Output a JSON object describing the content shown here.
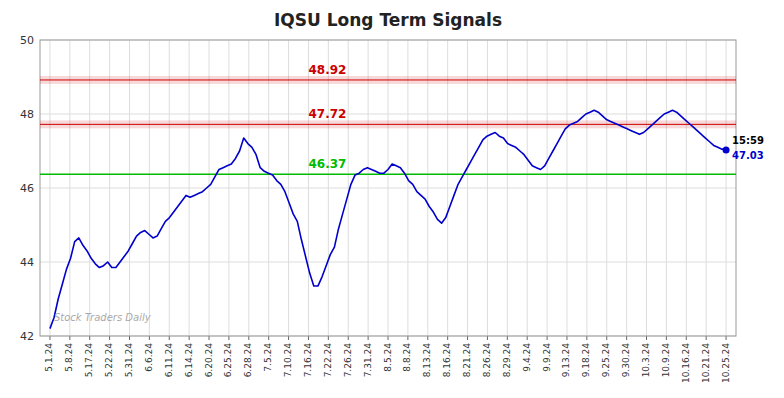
{
  "chart_data": {
    "type": "line",
    "title": "IQSU Long Term Signals",
    "watermark": "Stock Traders Daily",
    "color": "#0000cc",
    "grid": true,
    "ylim": [
      42,
      50
    ],
    "yticks": [
      42,
      44,
      46,
      48,
      50
    ],
    "xlim": [
      -0.5,
      34.5
    ],
    "xticks": [
      {
        "value": 0,
        "label": "5.1.24"
      },
      {
        "value": 1,
        "label": "5.8.24"
      },
      {
        "value": 2,
        "label": "5.17.24"
      },
      {
        "value": 3,
        "label": "5.22.24"
      },
      {
        "value": 4,
        "label": "5.31.24"
      },
      {
        "value": 5,
        "label": "6.6.24"
      },
      {
        "value": 6,
        "label": "6.11.24"
      },
      {
        "value": 7,
        "label": "6.14.24"
      },
      {
        "value": 8,
        "label": "6.20.24"
      },
      {
        "value": 9,
        "label": "6.25.24"
      },
      {
        "value": 10,
        "label": "6.28.24"
      },
      {
        "value": 11,
        "label": "7.5.24"
      },
      {
        "value": 12,
        "label": "7.10.24"
      },
      {
        "value": 13,
        "label": "7.16.24"
      },
      {
        "value": 14,
        "label": "7.22.24"
      },
      {
        "value": 15,
        "label": "7.26.24"
      },
      {
        "value": 16,
        "label": "7.31.24"
      },
      {
        "value": 17,
        "label": "8.5.24"
      },
      {
        "value": 18,
        "label": "8.8.24"
      },
      {
        "value": 19,
        "label": "8.13.24"
      },
      {
        "value": 20,
        "label": "8.16.24"
      },
      {
        "value": 21,
        "label": "8.21.24"
      },
      {
        "value": 22,
        "label": "8.26.24"
      },
      {
        "value": 23,
        "label": "8.29.24"
      },
      {
        "value": 24,
        "label": "9.4.24"
      },
      {
        "value": 25,
        "label": "9.9.24"
      },
      {
        "value": 26,
        "label": "9.13.24"
      },
      {
        "value": 27,
        "label": "9.18.24"
      },
      {
        "value": 28,
        "label": "9.25.24"
      },
      {
        "value": 29,
        "label": "9.30.24"
      },
      {
        "value": 30,
        "label": "10.3.24"
      },
      {
        "value": 31,
        "label": "10.9.24"
      },
      {
        "value": 32,
        "label": "10.16.24"
      },
      {
        "value": 33,
        "label": "10.21.24"
      },
      {
        "value": 34,
        "label": "10.25.24"
      }
    ],
    "hlines": [
      {
        "value": 48.92,
        "label": "48.92",
        "color": "#cc0000"
      },
      {
        "value": 47.72,
        "label": "47.72",
        "color": "#cc0000"
      },
      {
        "value": 46.37,
        "label": "46.37",
        "color": "#00bb00"
      }
    ],
    "annotations": [
      "15:59",
      "47.03"
    ],
    "values": [
      42.2,
      42.5,
      43.0,
      43.4,
      43.8,
      44.1,
      44.55,
      44.65,
      44.45,
      44.3,
      44.1,
      43.95,
      43.85,
      43.9,
      44.0,
      43.85,
      43.85,
      44.0,
      44.15,
      44.3,
      44.5,
      44.7,
      44.8,
      44.85,
      44.75,
      44.65,
      44.7,
      44.9,
      45.1,
      45.2,
      45.35,
      45.5,
      45.65,
      45.8,
      45.75,
      45.8,
      45.85,
      45.9,
      46.0,
      46.1,
      46.3,
      46.5,
      46.55,
      46.6,
      46.65,
      46.8,
      47.0,
      47.35,
      47.2,
      47.1,
      46.9,
      46.55,
      46.45,
      46.4,
      46.35,
      46.2,
      46.1,
      45.9,
      45.6,
      45.3,
      45.1,
      44.6,
      44.15,
      43.7,
      43.35,
      43.35,
      43.6,
      43.9,
      44.2,
      44.4,
      44.9,
      45.3,
      45.7,
      46.1,
      46.35,
      46.4,
      46.5,
      46.55,
      46.5,
      46.45,
      46.4,
      46.4,
      46.5,
      46.65,
      46.6,
      46.55,
      46.4,
      46.2,
      46.1,
      45.9,
      45.8,
      45.7,
      45.5,
      45.35,
      45.15,
      45.05,
      45.2,
      45.5,
      45.8,
      46.1,
      46.3,
      46.5,
      46.7,
      46.9,
      47.1,
      47.3,
      47.4,
      47.45,
      47.5,
      47.4,
      47.35,
      47.2,
      47.15,
      47.1,
      47.0,
      46.9,
      46.75,
      46.6,
      46.55,
      46.5,
      46.6,
      46.8,
      47.0,
      47.2,
      47.4,
      47.6,
      47.7,
      47.75,
      47.8,
      47.9,
      48.0,
      48.05,
      48.1,
      48.05,
      47.95,
      47.85,
      47.8,
      47.75,
      47.7,
      47.65,
      47.6,
      47.55,
      47.5,
      47.45,
      47.5,
      47.6,
      47.7,
      47.8,
      47.9,
      48.0,
      48.05,
      48.1,
      48.05,
      47.95,
      47.85,
      47.75,
      47.65,
      47.55,
      47.45,
      47.35,
      47.25,
      47.15,
      47.1,
      47.05,
      47.03
    ]
  }
}
